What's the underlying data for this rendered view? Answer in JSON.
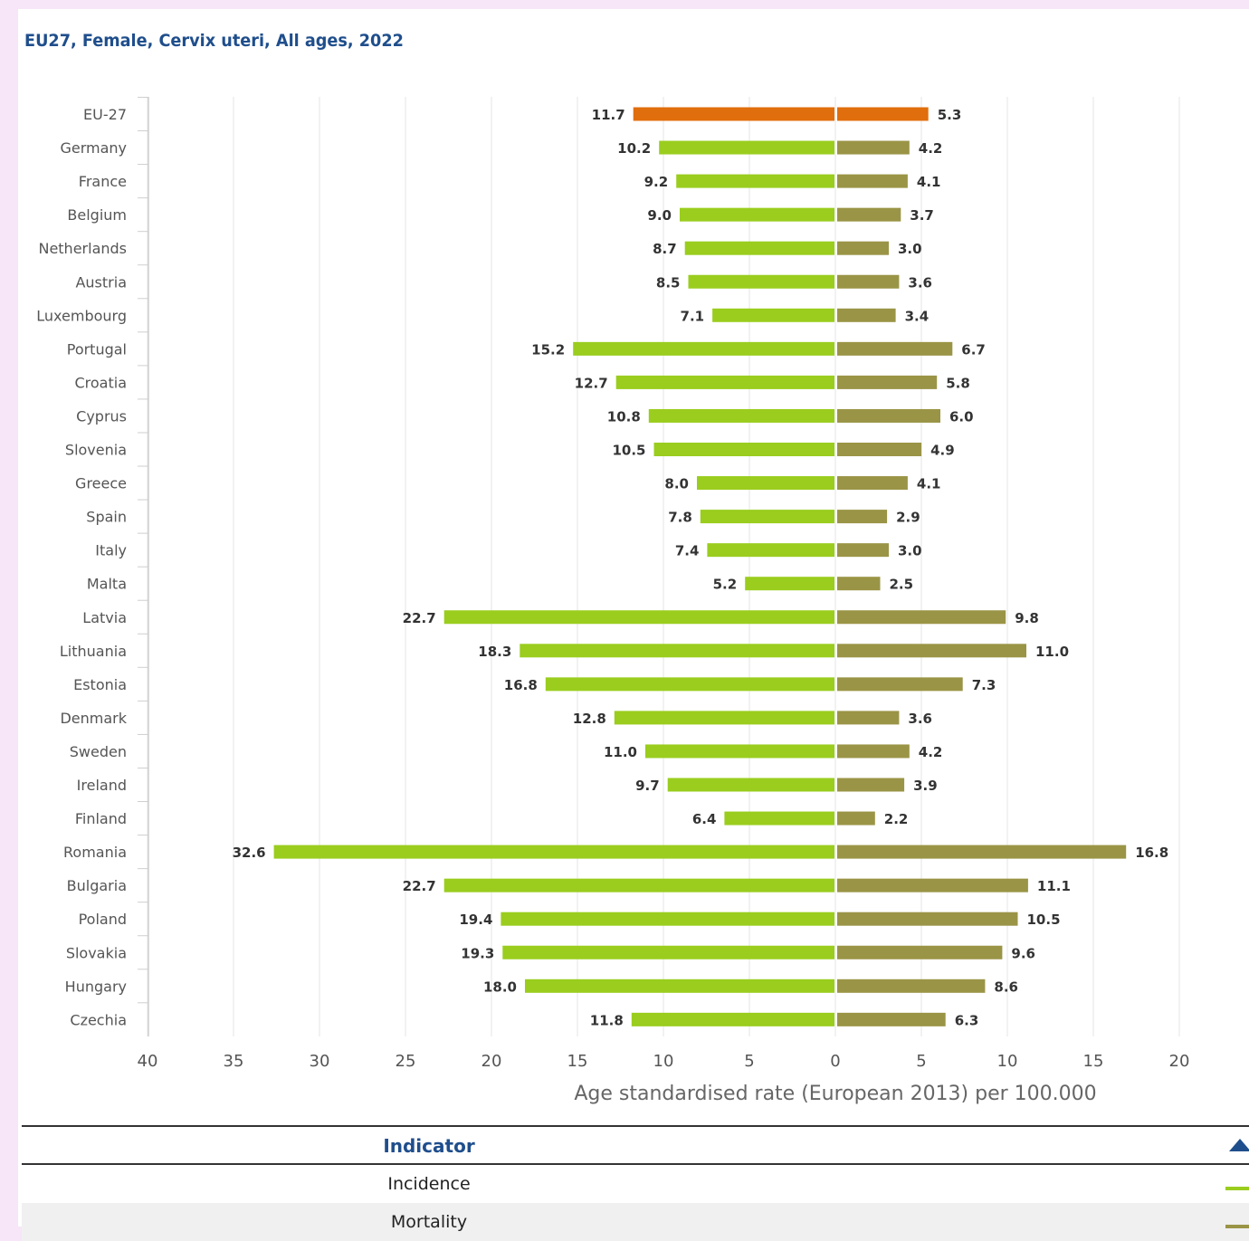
{
  "title": "EU27, Female, Cervix uteri, All ages, 2022",
  "colors": {
    "incidence": "#9acd1e",
    "mortality": "#9a9446",
    "eu_highlight": "#e06e0c",
    "title": "#1f4e8c",
    "grid": "#e4e4e4"
  },
  "legend": {
    "header": "Indicator",
    "header_icon": "sort-ascending-icon",
    "items": [
      {
        "label": "Incidence",
        "color": "#9acd1e"
      },
      {
        "label": "Mortality",
        "color": "#9a9446"
      }
    ]
  },
  "chart_data": {
    "type": "bar",
    "orientation": "horizontal",
    "layout": "diverging (population pyramid style)",
    "categories": [
      "EU-27",
      "Germany",
      "France",
      "Belgium",
      "Netherlands",
      "Austria",
      "Luxembourg",
      "Portugal",
      "Croatia",
      "Cyprus",
      "Slovenia",
      "Greece",
      "Spain",
      "Italy",
      "Malta",
      "Latvia",
      "Lithuania",
      "Estonia",
      "Denmark",
      "Sweden",
      "Ireland",
      "Finland",
      "Romania",
      "Bulgaria",
      "Poland",
      "Slovakia",
      "Hungary",
      "Czechia"
    ],
    "series": [
      {
        "name": "Incidence",
        "side": "left",
        "color": "#9acd1e",
        "values": [
          11.7,
          10.2,
          9.2,
          9.0,
          8.7,
          8.5,
          7.1,
          15.2,
          12.7,
          10.8,
          10.5,
          8.0,
          7.8,
          7.4,
          5.2,
          22.7,
          18.3,
          16.8,
          12.8,
          11.0,
          9.7,
          6.4,
          32.6,
          22.7,
          19.4,
          19.3,
          18.0,
          11.8
        ],
        "labels": [
          "11.7",
          "10.2",
          "9.2",
          "9.0",
          "8.7",
          "8.5",
          "7.1",
          "15.2",
          "12.7",
          "10.8",
          "10.5",
          "8.0",
          "7.8",
          "7.4",
          "5.2",
          "22.7",
          "18.3",
          "16.8",
          "12.8",
          "11.0",
          "9.7",
          "6.4",
          "32.6",
          "22.7",
          "19.4",
          "19.3",
          "18.0",
          "11.8"
        ]
      },
      {
        "name": "Mortality",
        "side": "right",
        "color": "#9a9446",
        "values": [
          5.3,
          4.2,
          4.1,
          3.7,
          3.0,
          3.6,
          3.4,
          6.7,
          5.8,
          6.0,
          4.9,
          4.1,
          2.9,
          3.0,
          2.5,
          9.8,
          11.0,
          7.3,
          3.6,
          4.2,
          3.9,
          2.2,
          16.8,
          11.1,
          10.5,
          9.6,
          8.6,
          6.3
        ],
        "labels": [
          "5.3",
          "4.2",
          "4.1",
          "3.7",
          "3.0",
          "3.6",
          "3.4",
          "6.7",
          "5.8",
          "6.0",
          "4.9",
          "4.1",
          "2.9",
          "3.0",
          "2.5",
          "9.8",
          "11.0",
          "7.3",
          "3.6",
          "4.2",
          "3.9",
          "2.2",
          "16.8",
          "11.1",
          "10.5",
          "9.6",
          "8.6",
          "6.3"
        ]
      }
    ],
    "highlight_category": "EU-27",
    "xlabel": "Age standardised rate (European 2013) per 100.000",
    "xlim_left": [
      0,
      40
    ],
    "xlim_right": [
      0,
      20
    ],
    "xticks_left": [
      "40",
      "35",
      "30",
      "25",
      "20",
      "15",
      "10",
      "5"
    ],
    "xticks_right": [
      "0",
      "5",
      "10",
      "15",
      "20"
    ],
    "grid": true
  }
}
